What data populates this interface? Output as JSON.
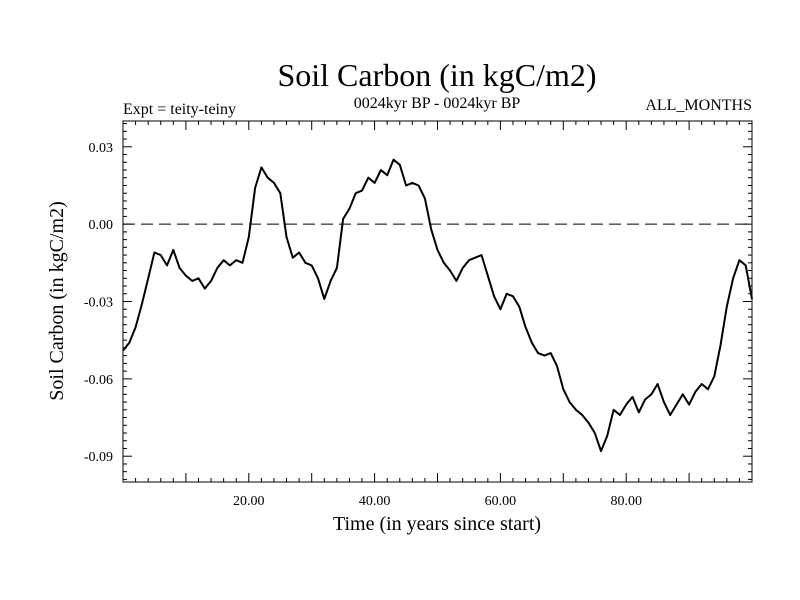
{
  "chart_data": {
    "type": "line",
    "title": "Soil Carbon (in kgC/m2)",
    "subtitle": "0024kyr BP - 0024kyr BP",
    "left_note": "Expt = teity-teiny",
    "right_note": "ALL_MONTHS",
    "xlabel": "Time (in years since start)",
    "ylabel": "Soil Carbon (in kgC/m2)",
    "xlim": [
      0,
      100
    ],
    "ylim": [
      -0.1,
      0.04
    ],
    "xticks": [
      20,
      40,
      60,
      80
    ],
    "xtick_labels": [
      "20.00",
      "40.00",
      "60.00",
      "80.00"
    ],
    "yticks": [
      0.03,
      0.0,
      -0.03,
      -0.06,
      -0.09
    ],
    "ytick_labels": [
      "0.03",
      "0.00",
      "-0.03",
      "-0.06",
      "-0.09"
    ],
    "reference_line": {
      "y": 0.0,
      "style": "dashed"
    },
    "grid": false,
    "series": [
      {
        "x": [
          0,
          1,
          2,
          3,
          4,
          5,
          6,
          7,
          8,
          9,
          10,
          11,
          12,
          13,
          14,
          15,
          16,
          17,
          18,
          19,
          20,
          21,
          22,
          23,
          24,
          25,
          26,
          27,
          28,
          29,
          30,
          31,
          32,
          33,
          34,
          35,
          36,
          37,
          38,
          39,
          40,
          41,
          42,
          43,
          44,
          45,
          46,
          47,
          48,
          49,
          50,
          51,
          52,
          53,
          54,
          55,
          56,
          57,
          58,
          59,
          60,
          61,
          62,
          63,
          64,
          65,
          66,
          67,
          68,
          69,
          70,
          71,
          72,
          73,
          74,
          75,
          76,
          77,
          78,
          79,
          80,
          81,
          82,
          83,
          84,
          85,
          86,
          87,
          88,
          89,
          90,
          91,
          92,
          93,
          94,
          95,
          96,
          97,
          98,
          99,
          100
        ],
        "values": [
          -0.049,
          -0.046,
          -0.04,
          -0.031,
          -0.021,
          -0.011,
          -0.012,
          -0.016,
          -0.01,
          -0.017,
          -0.02,
          -0.022,
          -0.021,
          -0.025,
          -0.022,
          -0.017,
          -0.014,
          -0.016,
          -0.014,
          -0.015,
          -0.005,
          0.014,
          0.022,
          0.018,
          0.016,
          0.012,
          -0.005,
          -0.013,
          -0.011,
          -0.015,
          -0.016,
          -0.021,
          -0.029,
          -0.022,
          -0.017,
          0.002,
          0.006,
          0.012,
          0.013,
          0.018,
          0.016,
          0.021,
          0.019,
          0.025,
          0.023,
          0.015,
          0.016,
          0.015,
          0.01,
          -0.002,
          -0.01,
          -0.015,
          -0.018,
          -0.022,
          -0.017,
          -0.014,
          -0.013,
          -0.012,
          -0.02,
          -0.028,
          -0.033,
          -0.027,
          -0.028,
          -0.032,
          -0.04,
          -0.046,
          -0.05,
          -0.051,
          -0.05,
          -0.055,
          -0.064,
          -0.069,
          -0.072,
          -0.074,
          -0.077,
          -0.081,
          -0.088,
          -0.082,
          -0.072,
          -0.074,
          -0.07,
          -0.067,
          -0.073,
          -0.068,
          -0.066,
          -0.062,
          -0.069,
          -0.074,
          -0.07,
          -0.066,
          -0.07,
          -0.065,
          -0.062,
          -0.064,
          -0.059,
          -0.047,
          -0.032,
          -0.021,
          -0.014,
          -0.016,
          -0.029
        ]
      }
    ]
  }
}
